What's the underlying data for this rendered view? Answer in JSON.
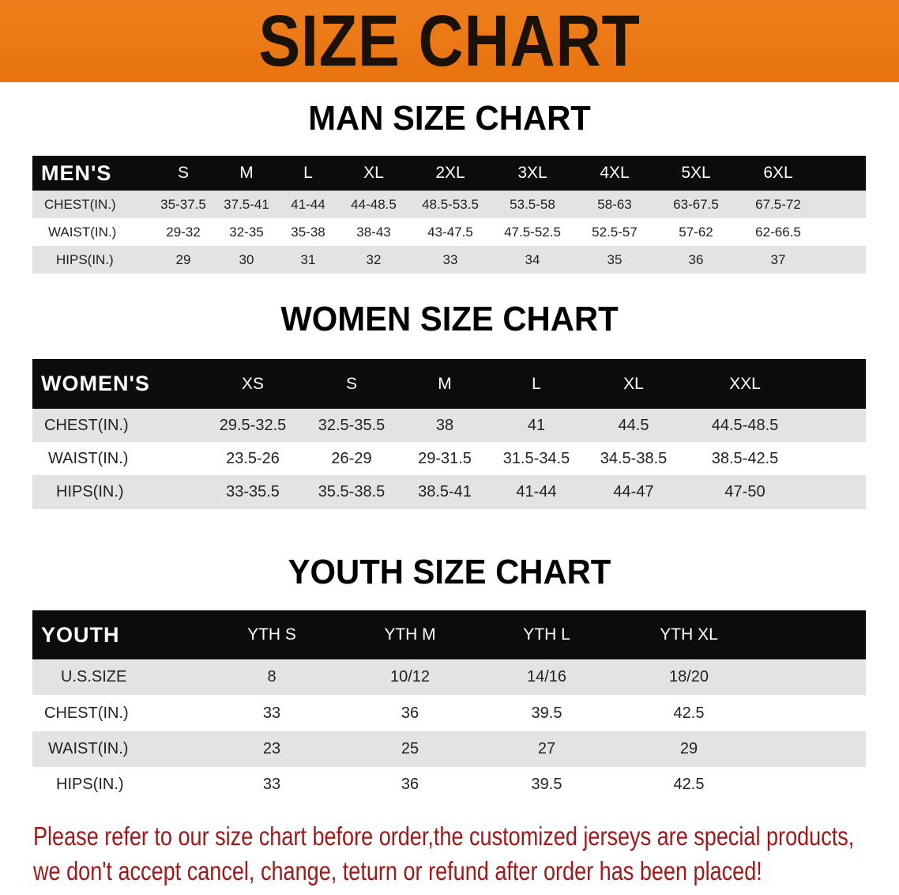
{
  "title": "SIZE CHART",
  "colors": {
    "banner": "#ec7a16",
    "header_row": "#0c0c0c",
    "shaded_row": "#e3e3e3",
    "note": "#a01818"
  },
  "men": {
    "title": "MAN SIZE CHART",
    "header": [
      "MEN'S",
      "S",
      "M",
      "L",
      "XL",
      "2XL",
      "3XL",
      "4XL",
      "5XL",
      "6XL"
    ],
    "rows": [
      [
        "CHEST(IN.)",
        "35-37.5",
        "37.5-41",
        "41-44",
        "44-48.5",
        "48.5-53.5",
        "53.5-58",
        "58-63",
        "63-67.5",
        "67.5-72"
      ],
      [
        "WAIST(IN.)",
        "29-32",
        "32-35",
        "35-38",
        "38-43",
        "43-47.5",
        "47.5-52.5",
        "52.5-57",
        "57-62",
        "62-66.5"
      ],
      [
        "HIPS(IN.)",
        "29",
        "30",
        "31",
        "32",
        "33",
        "34",
        "35",
        "36",
        "37"
      ]
    ]
  },
  "women": {
    "title": "WOMEN SIZE CHART",
    "header": [
      "WOMEN'S",
      "XS",
      "S",
      "M",
      "L",
      "XL",
      "XXL"
    ],
    "rows": [
      [
        "CHEST(IN.)",
        "29.5-32.5",
        "32.5-35.5",
        "38",
        "41",
        "44.5",
        "44.5-48.5"
      ],
      [
        "WAIST(IN.)",
        "23.5-26",
        "26-29",
        "29-31.5",
        "31.5-34.5",
        "34.5-38.5",
        "38.5-42.5"
      ],
      [
        "HIPS(IN.)",
        "33-35.5",
        "35.5-38.5",
        "38.5-41",
        "41-44",
        "44-47",
        "47-50"
      ]
    ]
  },
  "youth": {
    "title": "YOUTH SIZE CHART",
    "header": [
      "YOUTH",
      "YTH S",
      "YTH M",
      "YTH L",
      "YTH XL"
    ],
    "rows": [
      [
        "U.S.SIZE",
        "8",
        "10/12",
        "14/16",
        "18/20"
      ],
      [
        "CHEST(IN.)",
        "33",
        "36",
        "39.5",
        "42.5"
      ],
      [
        "WAIST(IN.)",
        "23",
        "25",
        "27",
        "29"
      ],
      [
        "HIPS(IN.)",
        "33",
        "36",
        "39.5",
        "42.5"
      ]
    ]
  },
  "note": {
    "line1": "Please refer to our size chart before order,the customized jerseys are special products,",
    "line2": "we don't accept cancel, change, teturn or refund after order has been placed!"
  }
}
